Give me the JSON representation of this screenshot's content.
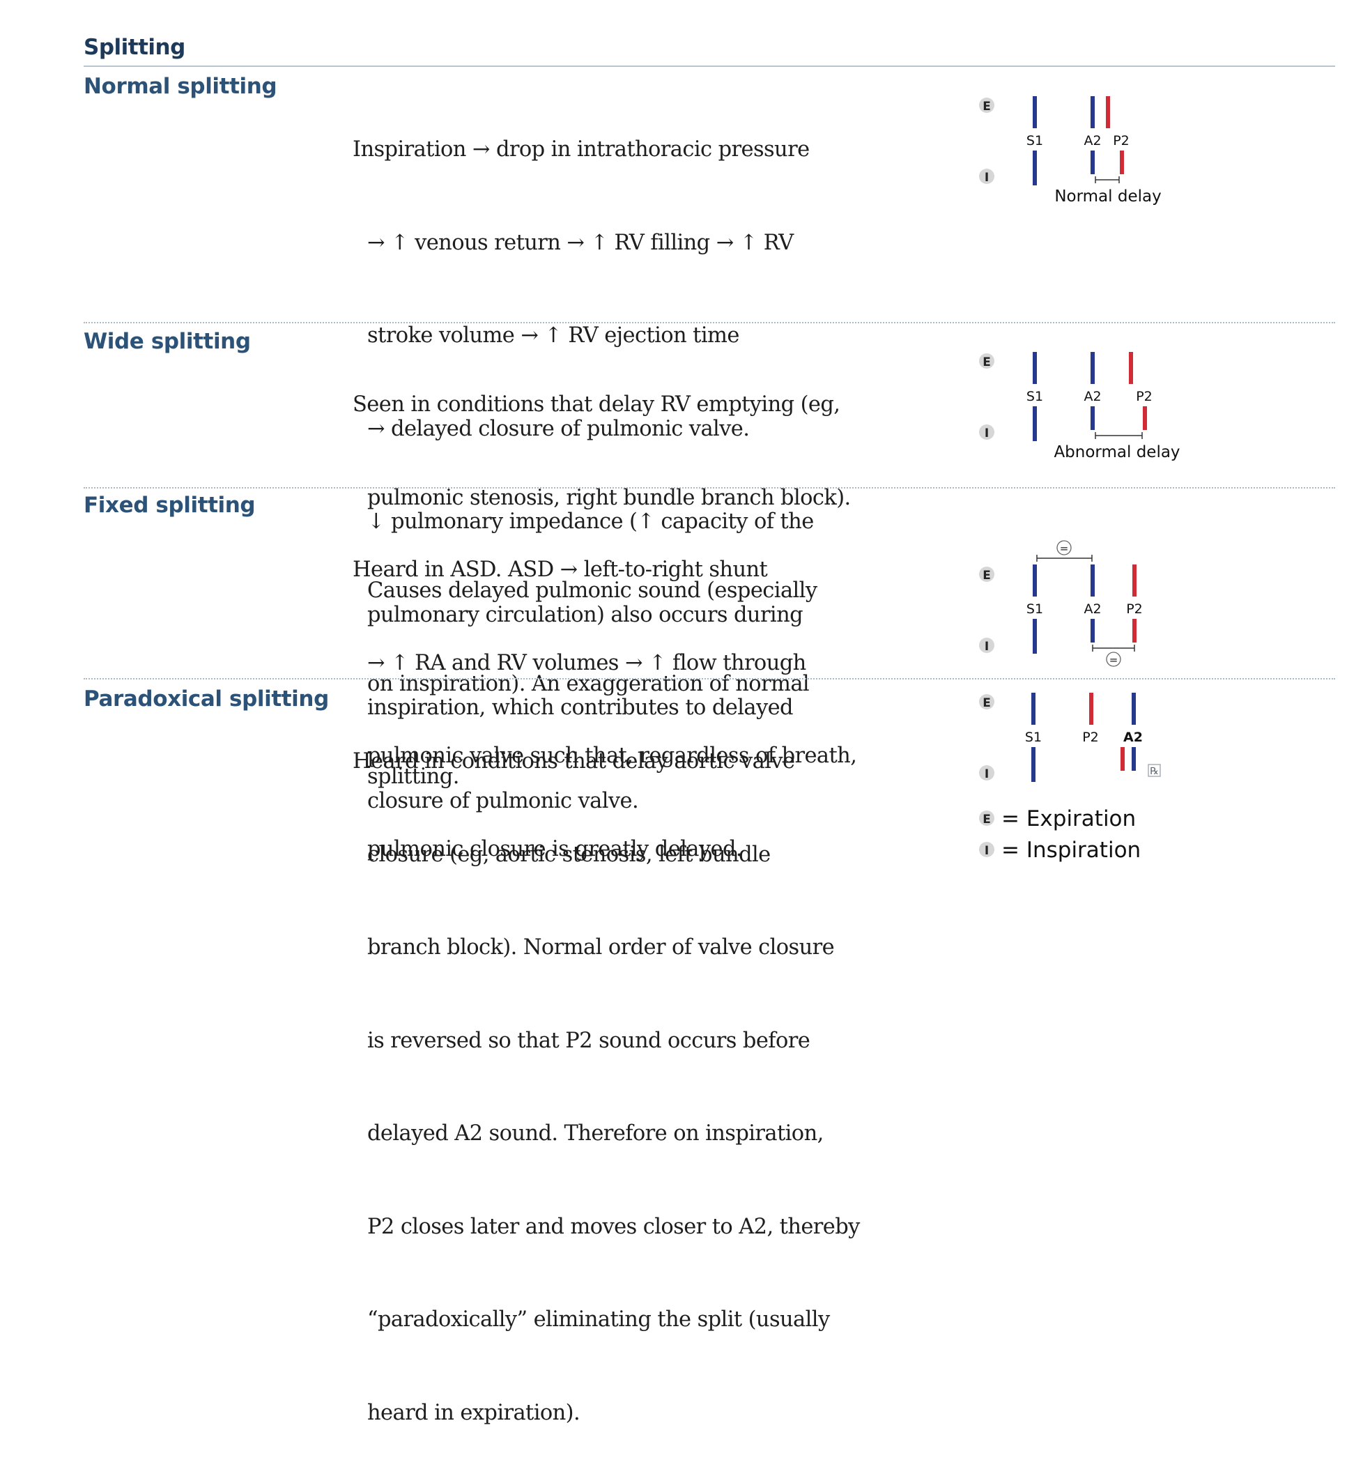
{
  "section_title": "Splitting",
  "colors": {
    "aortic": "#27398d",
    "pulmonic": "#d12c35",
    "heading": "#2c5377"
  },
  "legend": {
    "e_badge": "E",
    "i_badge": "I",
    "expiration": "= Expiration",
    "inspiration": "= Inspiration"
  },
  "rows": [
    {
      "label": "Normal splitting",
      "lines": [
        "Inspiration → drop in intrathoracic pressure",
        "→ ↑ venous return → ↑ RV filling → ↑ RV",
        "stroke volume → ↑ RV ejection time",
        "→ delayed closure of pulmonic valve.",
        "↓ pulmonary impedance (↑ capacity of the",
        "pulmonary circulation) also occurs during",
        "inspiration, which contributes to delayed",
        "closure of pulmonic valve."
      ],
      "diagram": {
        "s1": "S1",
        "first": "A2",
        "second": "P2",
        "caption": "Normal delay",
        "e": "E",
        "i": "I"
      }
    },
    {
      "label": "Wide splitting",
      "lines": [
        "Seen in conditions that delay RV emptying (eg,",
        "pulmonic stenosis, right bundle branch block).",
        "Causes delayed pulmonic sound (especially",
        "on inspiration). An exaggeration of normal",
        "splitting."
      ],
      "diagram": {
        "s1": "S1",
        "first": "A2",
        "second": "P2",
        "caption": "Abnormal delay",
        "e": "E",
        "i": "I"
      }
    },
    {
      "label": "Fixed splitting",
      "lines": [
        "Heard in ASD. ASD → left-to-right shunt",
        "→ ↑ RA and RV volumes → ↑ flow through",
        "pulmonic valve such that, regardless of breath,",
        "pulmonic closure is greatly delayed."
      ],
      "diagram": {
        "s1": "S1",
        "first": "A2",
        "second": "P2",
        "equal": "=",
        "e": "E",
        "i": "I"
      }
    },
    {
      "label": "Paradoxical splitting",
      "lines": [
        "Heard in conditions that delay aortic valve",
        "closure (eg, aortic stenosis, left bundle",
        "branch block). Normal order of valve closure",
        "is reversed so that P2 sound occurs before",
        "delayed A2 sound. Therefore on inspiration,",
        "P2 closes later and moves closer to A2, thereby",
        "“paradoxically” eliminating the split (usually",
        "heard in expiration)."
      ],
      "diagram": {
        "s1": "S1",
        "first": "P2",
        "second": "A2",
        "rx": "℞",
        "e": "E",
        "i": "I"
      }
    }
  ]
}
